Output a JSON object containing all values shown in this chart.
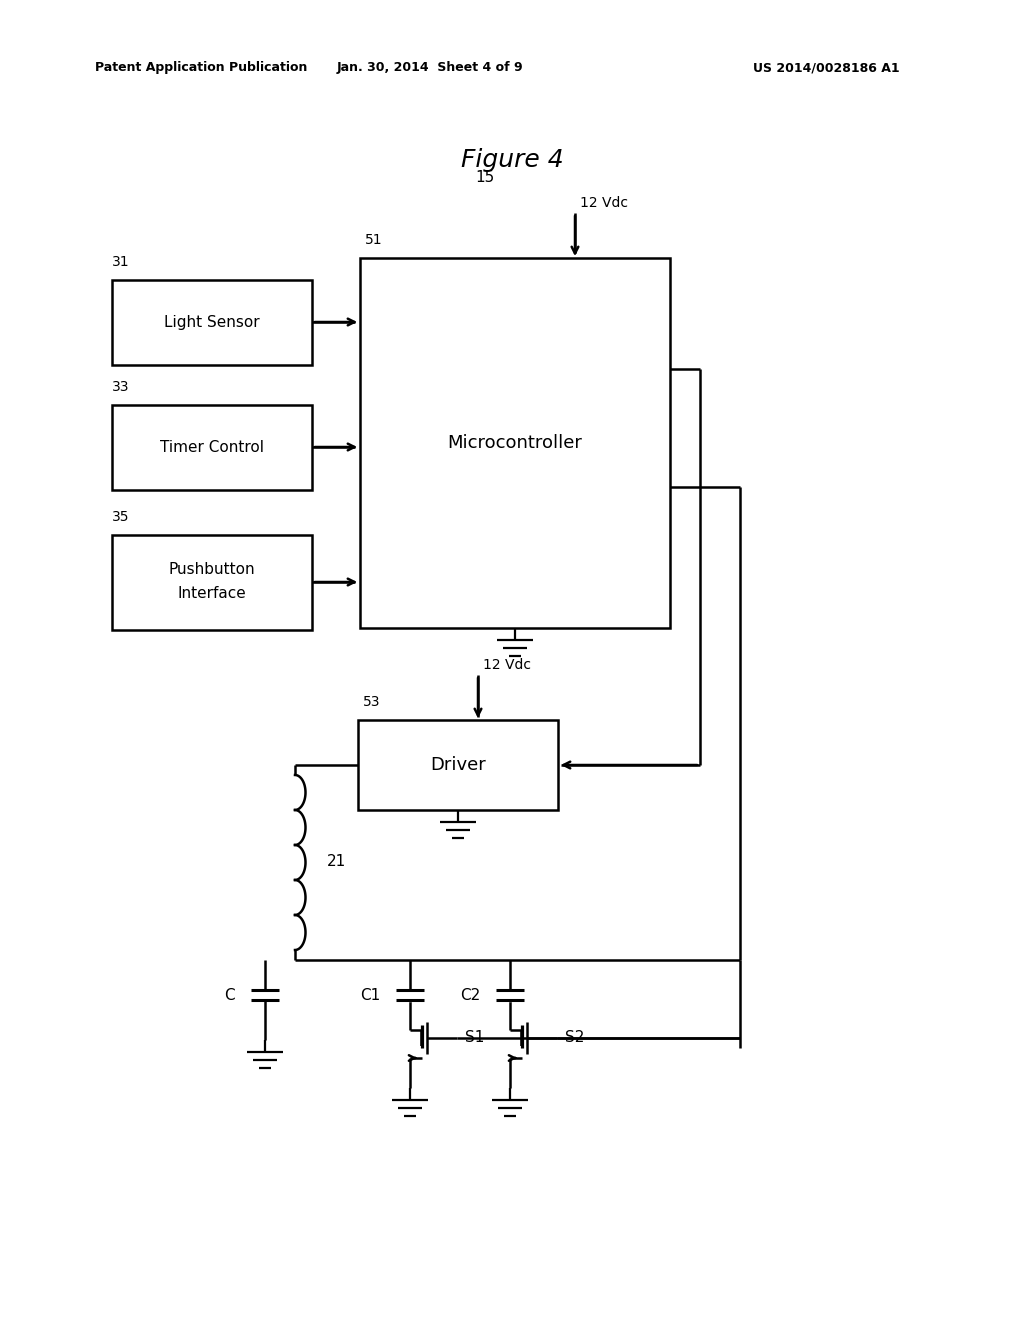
{
  "bg_color": "#ffffff",
  "title": "Figure 4",
  "header_left": "Patent Application Publication",
  "header_mid": "Jan. 30, 2014  Sheet 4 of 9",
  "header_right": "US 2014/0028186 A1",
  "figsize": [
    10.24,
    13.2
  ],
  "dpi": 100
}
